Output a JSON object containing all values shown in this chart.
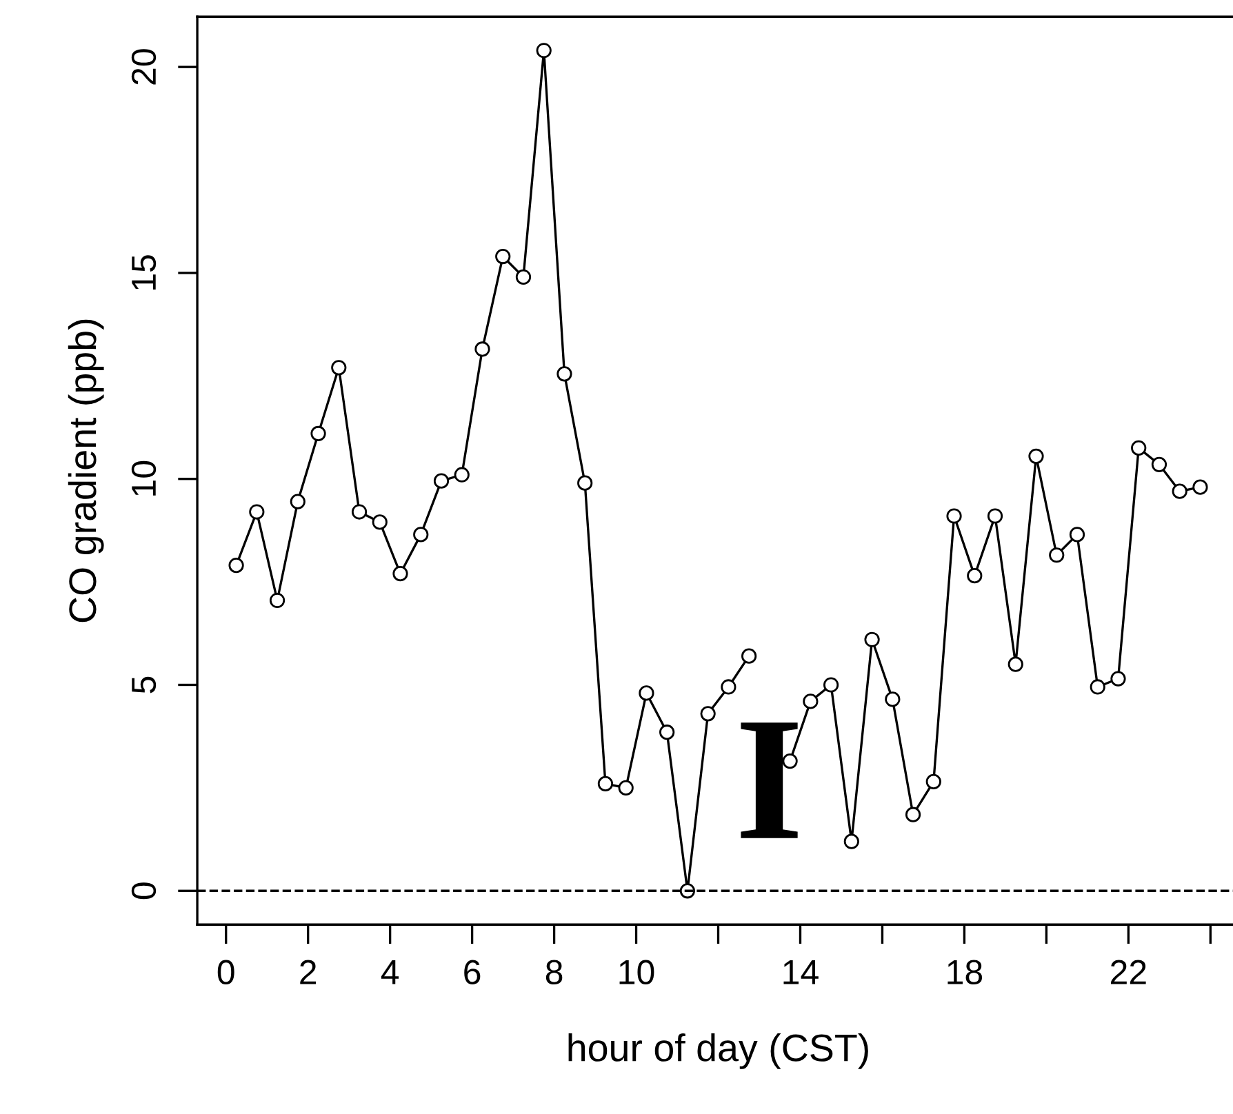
{
  "chart_data": {
    "type": "line",
    "xlabel": "hour of day (CST)",
    "ylabel": "CO gradient (ppb)",
    "x": [
      0.25,
      0.75,
      1.25,
      1.75,
      2.25,
      2.75,
      3.25,
      3.75,
      4.25,
      4.75,
      5.25,
      5.75,
      6.25,
      6.75,
      7.25,
      7.75,
      8.25,
      8.75,
      9.25,
      9.75,
      10.25,
      10.75,
      11.25,
      11.75,
      12.25,
      12.75,
      13.25,
      13.75,
      14.25,
      14.75,
      15.25,
      15.75,
      16.25,
      16.75,
      17.25,
      17.75,
      18.25,
      18.75,
      19.25,
      19.75,
      20.25,
      20.75,
      21.25,
      21.75,
      22.25,
      22.75,
      23.25,
      23.75
    ],
    "series": [
      {
        "color": "#000000",
        "values": [
          7.9,
          9.2,
          7.05,
          9.45,
          11.1,
          12.7,
          9.2,
          8.95,
          7.7,
          8.65,
          9.95,
          10.1,
          13.15,
          15.4,
          14.9,
          20.4,
          12.55,
          9.9,
          2.6,
          2.5,
          4.8,
          3.85,
          0,
          4.3,
          4.95,
          5.7,
          null,
          3.15,
          4.6,
          5.0,
          1.2,
          6.1,
          4.65,
          1.85,
          2.65,
          9.1,
          7.65,
          9.1,
          5.5,
          10.55,
          8.15,
          8.65,
          4.95,
          5.15,
          10.75,
          10.35,
          9.7,
          9.8
        ]
      }
    ],
    "marker": "circle",
    "line_style": "solid",
    "grid": false,
    "legend": false,
    "xlim": [
      -0.7,
      24.7
    ],
    "ylim": [
      -0.82,
      21.22
    ],
    "xticks": [
      0,
      2,
      4,
      6,
      8,
      10,
      {
        "value": 12,
        "label": null
      },
      14,
      {
        "value": 16,
        "label": null
      },
      18,
      {
        "value": 20,
        "label": null
      },
      22,
      {
        "value": 24,
        "label": null
      }
    ],
    "yticks": [
      0,
      5,
      10,
      15,
      20
    ],
    "ref_lines": [
      {
        "axis": "y",
        "value": 0,
        "line_style": "dashed",
        "color": "#000000"
      }
    ],
    "annotations": [
      "I"
    ]
  }
}
